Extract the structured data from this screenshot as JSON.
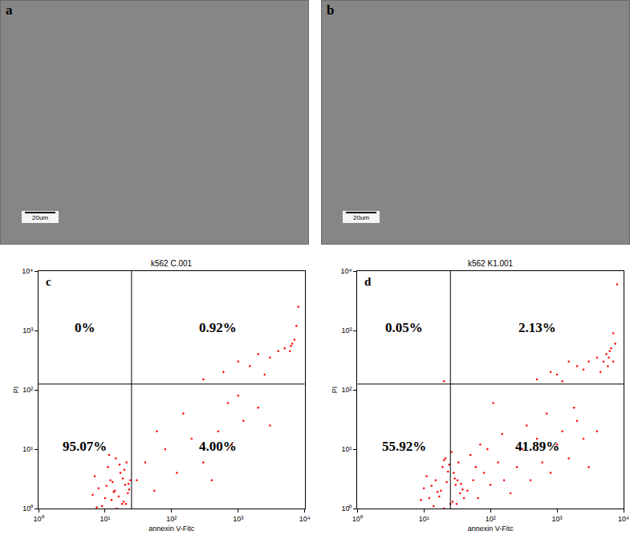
{
  "panels": [
    {
      "label": "a",
      "type": "image",
      "scale_bar": "20um"
    },
    {
      "label": "b",
      "type": "image",
      "scale_bar": "20um"
    }
  ],
  "chart_data": [
    {
      "type": "scatter",
      "panel": "c",
      "title": "k562 C.001",
      "x_label": "annexin V-Fitc",
      "y_label": "PI",
      "log": true,
      "grid": false,
      "color": "#ff0000",
      "marker": "dot",
      "xlim": [
        1,
        10000
      ],
      "ylim": [
        1,
        10000
      ],
      "xticks": [
        {
          "value": 1,
          "label": "10⁰"
        },
        {
          "value": 10,
          "label": "10¹"
        },
        {
          "value": 100,
          "label": "10²"
        },
        {
          "value": 1000,
          "label": "10³"
        },
        {
          "value": 10000,
          "label": "10⁴"
        }
      ],
      "yticks": [
        {
          "value": 1,
          "label": "10⁰"
        },
        {
          "value": 10,
          "label": "10¹"
        },
        {
          "value": 100,
          "label": "10²"
        },
        {
          "value": 1000,
          "label": "10³"
        },
        {
          "value": 10000,
          "label": "10⁴"
        }
      ],
      "gate_x": 25,
      "gate_y": 125,
      "quadrants": {
        "upper_left": "0%",
        "upper_right": "0.92%",
        "lower_left": "95.07%",
        "lower_right": "4.00%"
      },
      "x": [
        10,
        14,
        18,
        12,
        20,
        15,
        8,
        17,
        22,
        24,
        9,
        13,
        11,
        19,
        23,
        7,
        16,
        21,
        12.5,
        6.5,
        14.5,
        18.5,
        22.5,
        10.5,
        16.5,
        20.5,
        13.5,
        7.5,
        19.5,
        11.5,
        30,
        40,
        55,
        80,
        120,
        200,
        300,
        500,
        800,
        1200,
        2000,
        400,
        150,
        3000,
        1000,
        60,
        700,
        300,
        600,
        1000,
        1500,
        2000,
        3000,
        4000,
        5000,
        6000,
        6500,
        7000,
        6200,
        7500,
        8000,
        2500
      ],
      "y": [
        1.5,
        2,
        1.2,
        3,
        2.5,
        1,
        2.2,
        4,
        1.8,
        3,
        1.1,
        2.8,
        5,
        1.3,
        2.1,
        3.5,
        1.6,
        6,
        1.4,
        1.7,
        7,
        3.2,
        2.6,
        2.4,
        5.5,
        1.2,
        1.9,
        1.05,
        4.5,
        8,
        3,
        6,
        2,
        10,
        4,
        15,
        6,
        20,
        12,
        30,
        50,
        3,
        40,
        25,
        80,
        20,
        60,
        150,
        200,
        300,
        250,
        400,
        350,
        450,
        500,
        450,
        600,
        700,
        550,
        1200,
        2500,
        180
      ]
    },
    {
      "type": "scatter",
      "panel": "d",
      "title": "k562 K1.001",
      "x_label": "annexin V-Fitc",
      "y_label": "PI",
      "log": true,
      "grid": false,
      "color": "#ff0000",
      "marker": "dot",
      "xlim": [
        1,
        10000
      ],
      "ylim": [
        1,
        10000
      ],
      "xticks": [
        {
          "value": 1,
          "label": "10⁰"
        },
        {
          "value": 10,
          "label": "10¹"
        },
        {
          "value": 100,
          "label": "10²"
        },
        {
          "value": 1000,
          "label": "10³"
        },
        {
          "value": 10000,
          "label": "10⁴"
        }
      ],
      "yticks": [
        {
          "value": 1,
          "label": "10⁰"
        },
        {
          "value": 10,
          "label": "10¹"
        },
        {
          "value": 100,
          "label": "10²"
        },
        {
          "value": 1000,
          "label": "10³"
        },
        {
          "value": 10000,
          "label": "10⁴"
        }
      ],
      "gate_x": 25,
      "gate_y": 125,
      "quadrants": {
        "upper_left": "0.05%",
        "upper_right": "2.13%",
        "lower_left": "55.92%",
        "lower_right": "41.89%"
      },
      "x": [
        12,
        18,
        25,
        15,
        30,
        20,
        10,
        28,
        35,
        32,
        14,
        22,
        19,
        27,
        38,
        11,
        17,
        33,
        40,
        9,
        21,
        29,
        36,
        13,
        24,
        31,
        16,
        23,
        26,
        20,
        45,
        55,
        65,
        80,
        100,
        130,
        160,
        200,
        250,
        300,
        400,
        500,
        600,
        800,
        1000,
        1200,
        1500,
        2000,
        2500,
        3000,
        50,
        70,
        90,
        150,
        350,
        700,
        1800,
        4000,
        60,
        110,
        500,
        800,
        1000,
        1500,
        2000,
        3000,
        4000,
        5000,
        5500,
        6000,
        6500,
        7000,
        7500,
        8000,
        2500,
        1200,
        5800,
        6200,
        7000,
        4500,
        20
      ],
      "y": [
        1.5,
        2,
        1.2,
        3,
        2.5,
        1,
        2.2,
        4,
        1.8,
        3,
        1.1,
        2.8,
        5,
        1.3,
        2.1,
        3.5,
        1.6,
        6,
        1.5,
        1.4,
        7,
        3.2,
        2.6,
        2.4,
        5.5,
        1.2,
        1.9,
        4.2,
        9,
        6.5,
        2,
        3,
        1.5,
        4,
        2.5,
        6,
        3,
        1.8,
        5,
        10,
        3,
        15,
        6,
        4,
        12,
        20,
        7,
        30,
        15,
        5,
        8,
        12,
        10,
        18,
        25,
        40,
        50,
        20,
        5,
        60,
        150,
        200,
        180,
        300,
        250,
        300,
        350,
        300,
        400,
        350,
        500,
        300,
        600,
        6000,
        220,
        140,
        250,
        450,
        900,
        200,
        140
      ]
    }
  ]
}
